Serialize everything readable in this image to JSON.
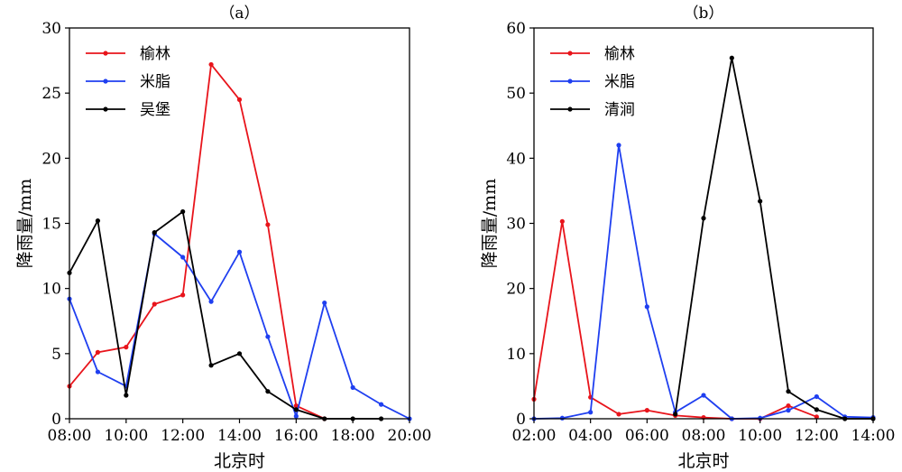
{
  "chart_data": [
    {
      "type": "line",
      "title": "（a）",
      "xlabel": "北京时",
      "ylabel": "降雨量/mm",
      "x": [
        "08:00",
        "09:00",
        "10:00",
        "11:00",
        "12:00",
        "13:00",
        "14:00",
        "15:00",
        "16:00",
        "17:00",
        "18:00",
        "19:00",
        "20:00"
      ],
      "x_ticks": [
        "08:00",
        "10:00",
        "12:00",
        "14:00",
        "16:00",
        "18:00",
        "20:00"
      ],
      "ylim": [
        0,
        30
      ],
      "y_ticks": [
        0,
        5,
        10,
        15,
        20,
        25,
        30
      ],
      "legend_position": "top-left",
      "grid": false,
      "series": [
        {
          "name": "榆林",
          "color": "#e8141b",
          "values": [
            2.5,
            5.1,
            5.5,
            8.8,
            9.5,
            27.2,
            24.5,
            14.9,
            1.0,
            0,
            null,
            null,
            null
          ]
        },
        {
          "name": "米脂",
          "color": "#1f3ff0",
          "values": [
            9.2,
            3.6,
            2.5,
            14.2,
            12.4,
            9.0,
            12.8,
            6.3,
            0.2,
            8.9,
            2.4,
            1.1,
            0
          ]
        },
        {
          "name": "吴堡",
          "color": "#000000",
          "values": [
            11.2,
            15.2,
            1.8,
            14.3,
            15.9,
            4.1,
            5.0,
            2.1,
            0.7,
            0,
            0,
            0,
            null
          ]
        }
      ]
    },
    {
      "type": "line",
      "title": "（b）",
      "xlabel": "北京时",
      "ylabel": "降雨量/mm",
      "x": [
        "02:00",
        "03:00",
        "04:00",
        "05:00",
        "06:00",
        "07:00",
        "08:00",
        "09:00",
        "10:00",
        "11:00",
        "12:00",
        "13:00",
        "14:00"
      ],
      "x_ticks": [
        "02:00",
        "04:00",
        "06:00",
        "08:00",
        "10:00",
        "12:00",
        "14:00"
      ],
      "ylim": [
        0,
        60
      ],
      "y_ticks": [
        0,
        10,
        20,
        30,
        40,
        50,
        60
      ],
      "legend_position": "top-left",
      "grid": false,
      "series": [
        {
          "name": "榆林",
          "color": "#e8141b",
          "values": [
            3.0,
            30.3,
            3.3,
            0.7,
            1.3,
            0.5,
            0.2,
            0,
            0,
            2.0,
            0.3,
            null,
            null
          ]
        },
        {
          "name": "米脂",
          "color": "#1f3ff0",
          "values": [
            0,
            0.1,
            1.0,
            42.0,
            17.2,
            1.0,
            3.6,
            0,
            0.1,
            1.3,
            3.4,
            0.3,
            0.2
          ]
        },
        {
          "name": "清涧",
          "color": "#000000",
          "values": [
            null,
            null,
            null,
            null,
            null,
            0.7,
            30.8,
            55.4,
            33.4,
            4.2,
            1.4,
            0,
            0
          ]
        }
      ]
    }
  ]
}
